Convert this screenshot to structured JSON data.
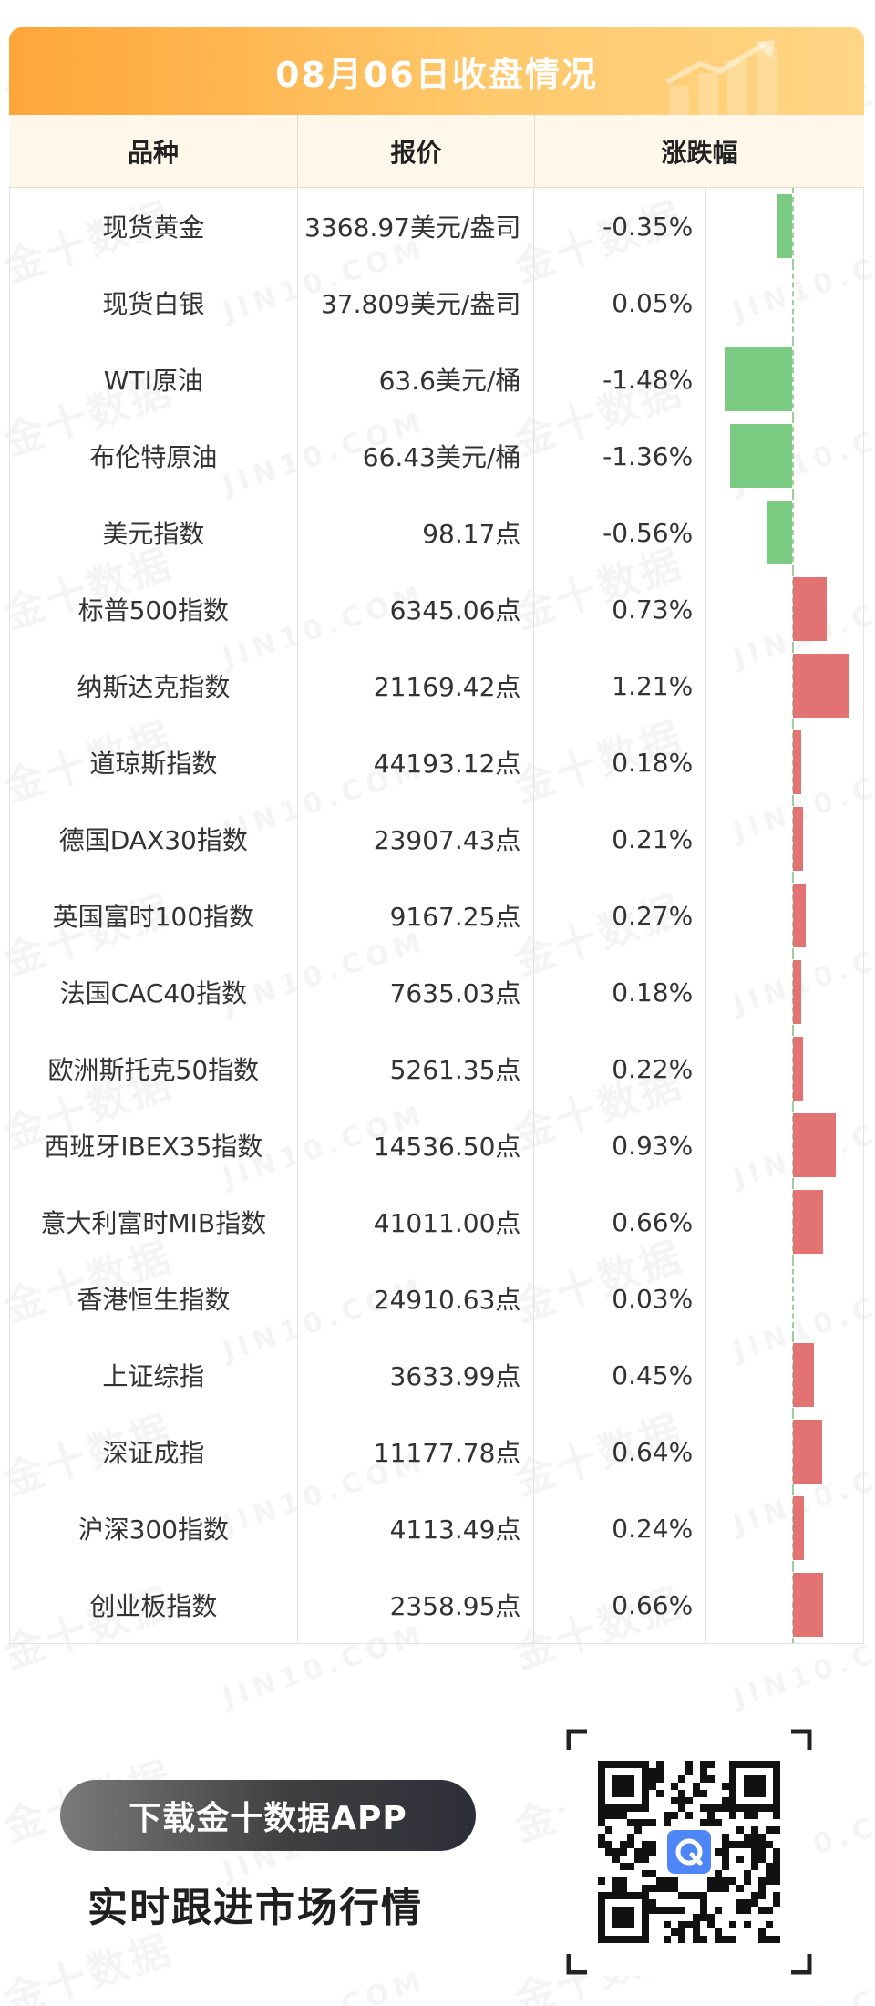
{
  "header": {
    "title": "08月06日收盘情况"
  },
  "watermark": {
    "cn": "金十数据",
    "en": "JIN10.COM"
  },
  "table": {
    "columns": [
      "品种",
      "报价",
      "涨跌幅"
    ],
    "rows": [
      {
        "name": "现货黄金",
        "price": "3368.97美元/盎司",
        "change": "-0.35%",
        "pct": -0.35
      },
      {
        "name": "现货白银",
        "price": "37.809美元/盎司",
        "change": "0.05%",
        "pct": 0.05
      },
      {
        "name": "WTI原油",
        "price": "63.6美元/桶",
        "change": "-1.48%",
        "pct": -1.48
      },
      {
        "name": "布伦特原油",
        "price": "66.43美元/桶",
        "change": "-1.36%",
        "pct": -1.36
      },
      {
        "name": "美元指数",
        "price": "98.17点",
        "change": "-0.56%",
        "pct": -0.56
      },
      {
        "name": "标普500指数",
        "price": "6345.06点",
        "change": "0.73%",
        "pct": 0.73
      },
      {
        "name": "纳斯达克指数",
        "price": "21169.42点",
        "change": "1.21%",
        "pct": 1.21
      },
      {
        "name": "道琼斯指数",
        "price": "44193.12点",
        "change": "0.18%",
        "pct": 0.18
      },
      {
        "name": "德国DAX30指数",
        "price": "23907.43点",
        "change": "0.21%",
        "pct": 0.21
      },
      {
        "name": "英国富时100指数",
        "price": "9167.25点",
        "change": "0.27%",
        "pct": 0.27
      },
      {
        "name": "法国CAC40指数",
        "price": "7635.03点",
        "change": "0.18%",
        "pct": 0.18
      },
      {
        "name": "欧洲斯托克50指数",
        "price": "5261.35点",
        "change": "0.22%",
        "pct": 0.22
      },
      {
        "name": "西班牙IBEX35指数",
        "price": "14536.50点",
        "change": "0.93%",
        "pct": 0.93
      },
      {
        "name": "意大利富时MIB指数",
        "price": "41011.00点",
        "change": "0.66%",
        "pct": 0.66
      },
      {
        "name": "香港恒生指数",
        "price": "24910.63点",
        "change": "0.03%",
        "pct": 0.03
      },
      {
        "name": "上证综指",
        "price": "3633.99点",
        "change": "0.45%",
        "pct": 0.45
      },
      {
        "name": "深证成指",
        "price": "11177.78点",
        "change": "0.64%",
        "pct": 0.64
      },
      {
        "name": "沪深300指数",
        "price": "4113.49点",
        "change": "0.24%",
        "pct": 0.24
      },
      {
        "name": "创业板指数",
        "price": "2358.95点",
        "change": "0.66%",
        "pct": 0.66
      }
    ]
  },
  "footer": {
    "download_label": "下载金十数据APP",
    "slogan": "实时跟进市场行情"
  },
  "colors": {
    "header_start": "#ffa63a",
    "header_end": "#ffd685",
    "positive_bar": "#e37372",
    "negative_bar": "#7bcb83"
  },
  "icons": [
    "trend-up-icon",
    "qr-code-icon",
    "jin10-logo-icon"
  ]
}
